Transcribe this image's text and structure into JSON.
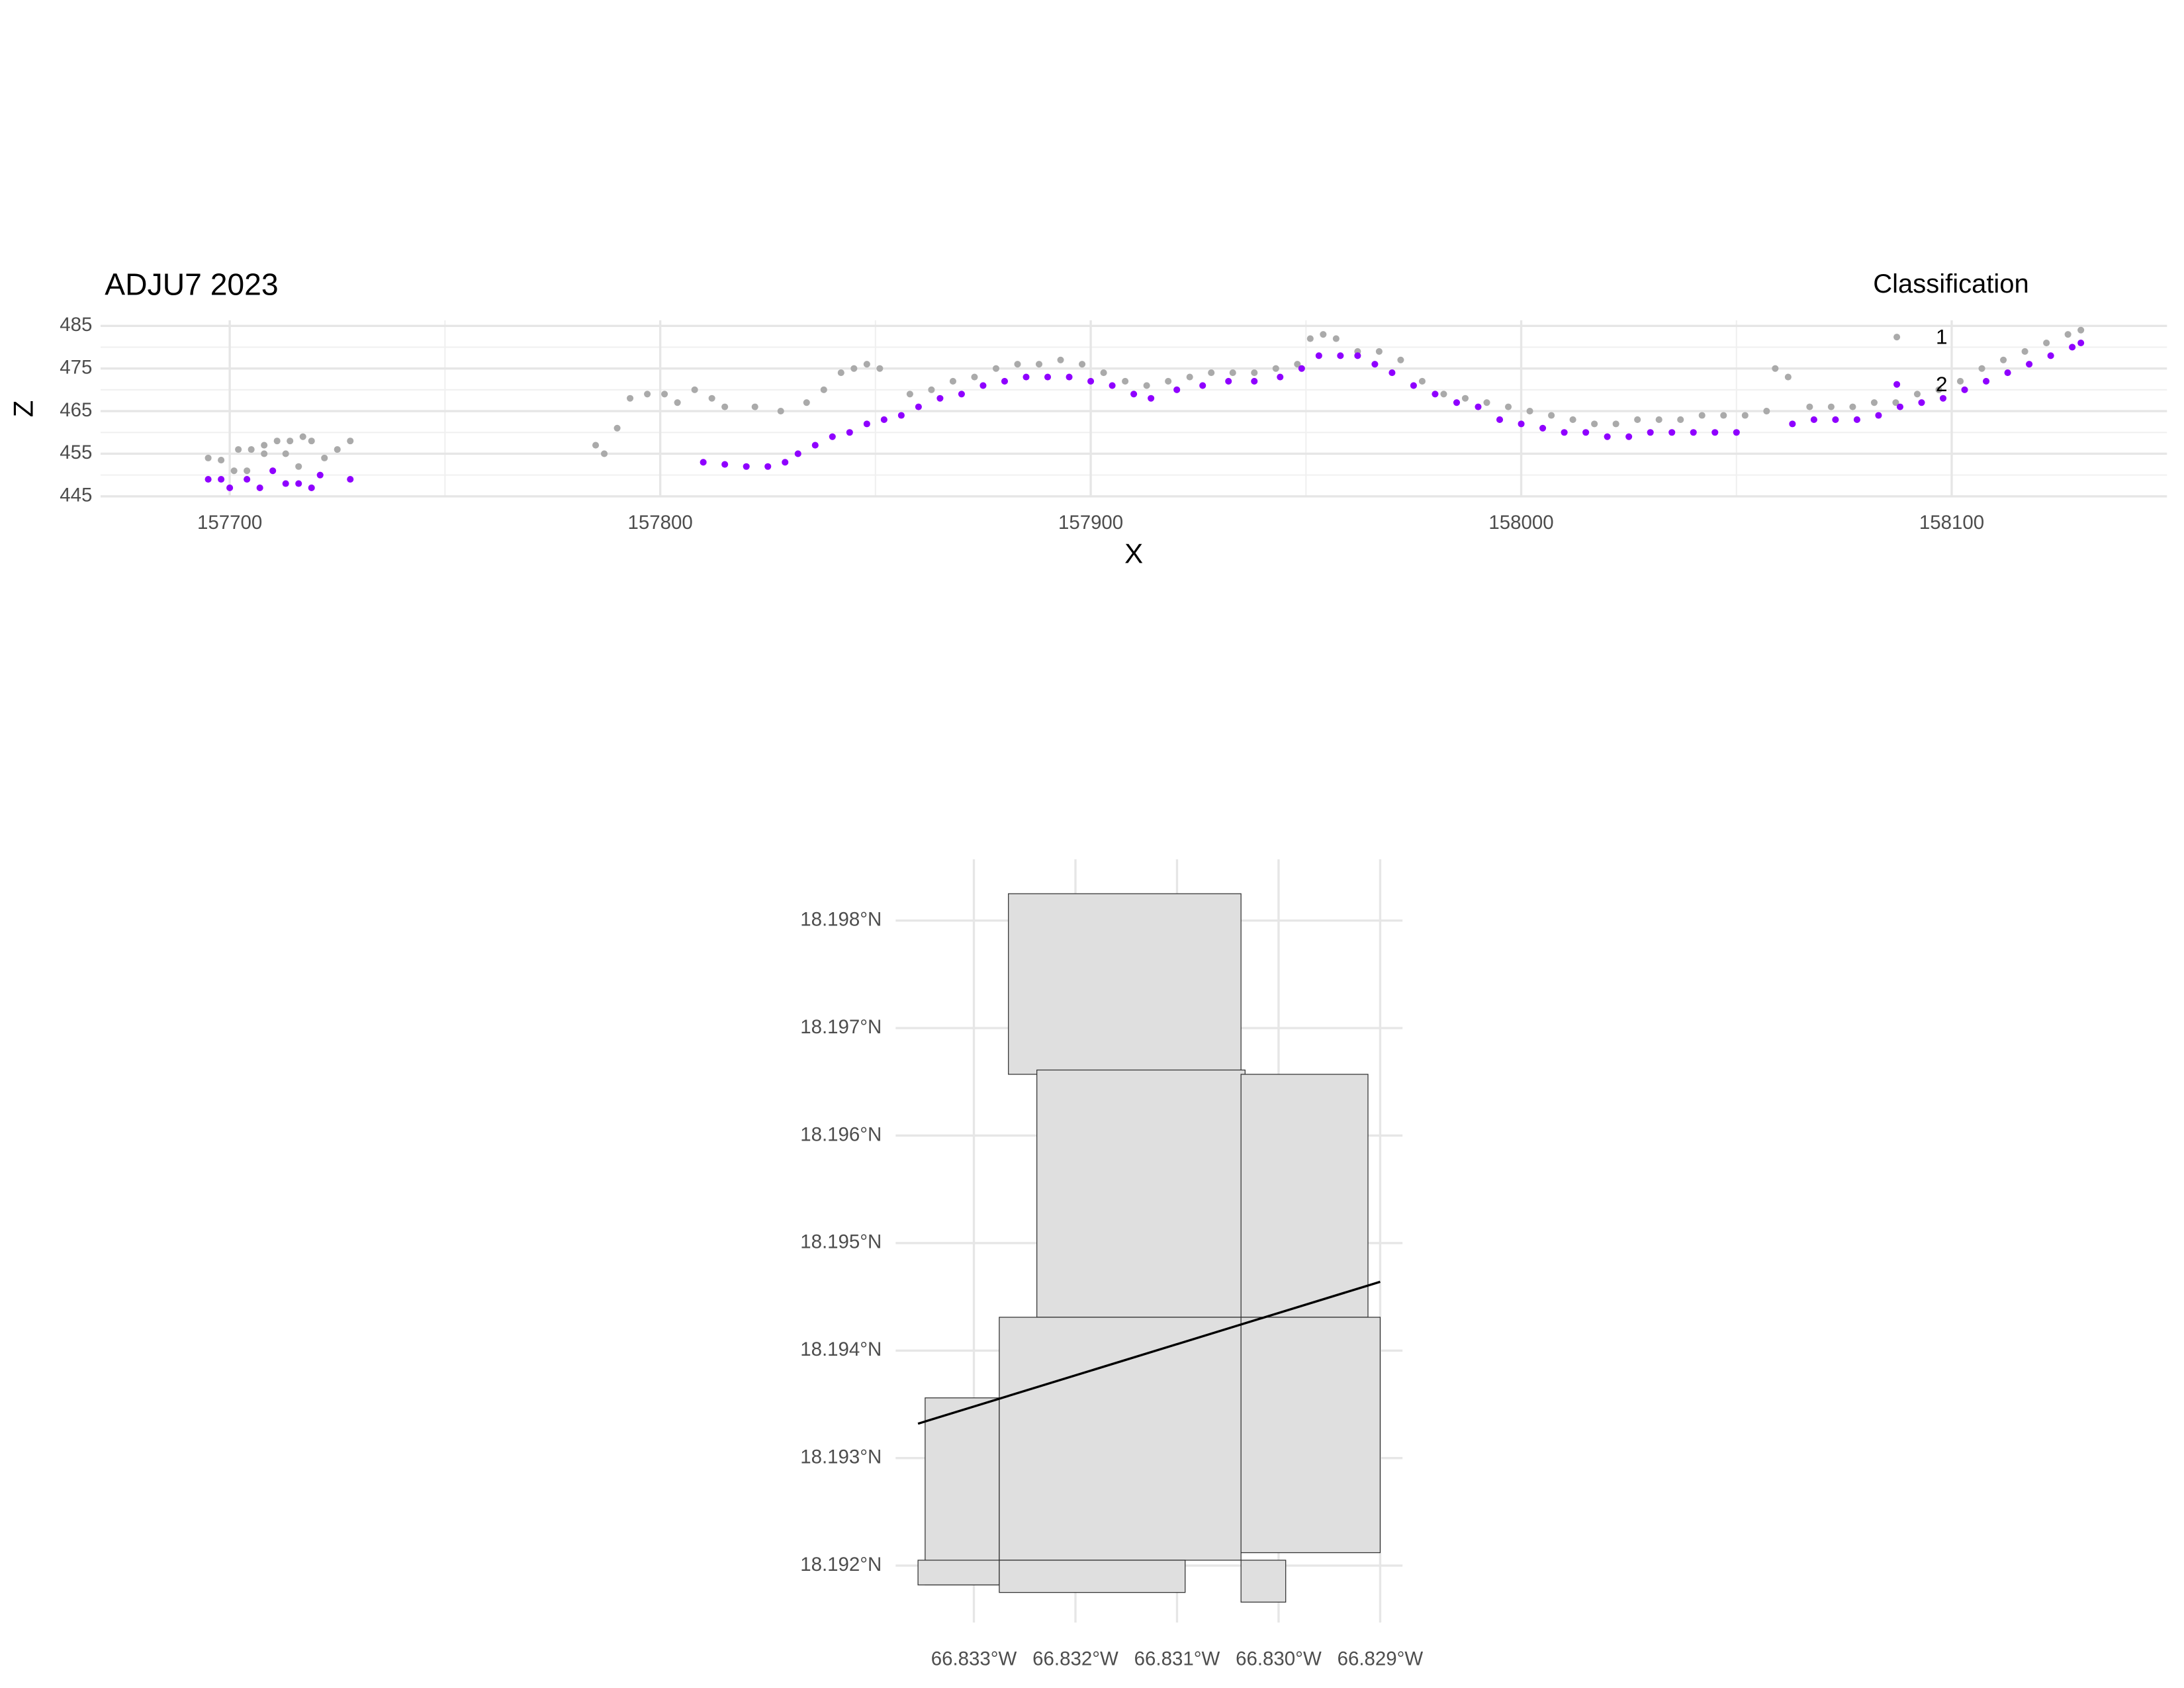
{
  "chart_data": [
    {
      "type": "scatter",
      "title": "ADJU7 2023",
      "x_label": "X",
      "y_label": "Z",
      "legend_title": "Classification",
      "legend": "top-right",
      "grid": true,
      "xlim": [
        157670,
        158150
      ],
      "ylim": [
        444.8,
        486.3
      ],
      "xticks": [
        157700,
        157800,
        157900,
        158000,
        158100
      ],
      "yticks": [
        445,
        455,
        465,
        475,
        485
      ],
      "series": [
        {
          "name": "1",
          "color": "#aaaaaa",
          "x": [
            157695,
            157698,
            157702,
            157705,
            157708,
            157711,
            157714,
            157717,
            157719,
            157713,
            157708,
            157716,
            157722,
            157725,
            157728,
            157701,
            157704,
            157785,
            157787,
            157790,
            157793,
            157797,
            157801,
            157804,
            157808,
            157812,
            157815,
            157822,
            157828,
            157834,
            157838,
            157842,
            157845,
            157848,
            157851,
            157858,
            157863,
            157868,
            157873,
            157878,
            157883,
            157888,
            157893,
            157898,
            157903,
            157908,
            157913,
            157918,
            157923,
            157928,
            157933,
            157938,
            157943,
            157948,
            157951,
            157954,
            157957,
            157962,
            157967,
            157972,
            157977,
            157982,
            157987,
            157992,
            157997,
            158002,
            158007,
            158012,
            158017,
            158022,
            158027,
            158032,
            158037,
            158042,
            158047,
            158052,
            158057,
            158059,
            158062,
            158067,
            158072,
            158077,
            158082,
            158087,
            158092,
            158097,
            158102,
            158107,
            158112,
            158117,
            158122,
            158127,
            158130
          ],
          "y": [
            454,
            453.5,
            456,
            456,
            457,
            458,
            458,
            459,
            458,
            455,
            455,
            452,
            454,
            456,
            458,
            451,
            451,
            457,
            455,
            461,
            468,
            469,
            469,
            467,
            470,
            468,
            466,
            466,
            465,
            467,
            470,
            474,
            475,
            476,
            475,
            469,
            470,
            472,
            473,
            475,
            476,
            476,
            477,
            476,
            474,
            472,
            471,
            472,
            473,
            474,
            474,
            474,
            475,
            476,
            482,
            483,
            482,
            479,
            479,
            477,
            472,
            469,
            468,
            467,
            466,
            465,
            464,
            463,
            462,
            462,
            463,
            463,
            463,
            464,
            464,
            464,
            465,
            475,
            473,
            466,
            466,
            466,
            467,
            467,
            469,
            470,
            472,
            475,
            477,
            479,
            481,
            483,
            484
          ]
        },
        {
          "name": "2",
          "color": "#8f00ff",
          "x": [
            157695,
            157698,
            157700,
            157704,
            157707,
            157710,
            157713,
            157716,
            157719,
            157721,
            157728,
            157810,
            157815,
            157820,
            157825,
            157829,
            157832,
            157836,
            157840,
            157844,
            157848,
            157852,
            157856,
            157860,
            157865,
            157870,
            157875,
            157880,
            157885,
            157890,
            157895,
            157900,
            157905,
            157910,
            157914,
            157920,
            157926,
            157932,
            157938,
            157944,
            157949,
            157953,
            157958,
            157962,
            157966,
            157970,
            157975,
            157980,
            157985,
            157990,
            157995,
            158000,
            158005,
            158010,
            158015,
            158020,
            158025,
            158030,
            158035,
            158040,
            158045,
            158050,
            158063,
            158068,
            158073,
            158078,
            158083,
            158088,
            158093,
            158098,
            158103,
            158108,
            158113,
            158118,
            158123,
            158128,
            158130
          ],
          "y": [
            449,
            449,
            447,
            449,
            447,
            451,
            448,
            448,
            447,
            450,
            449,
            453,
            452.5,
            452,
            452,
            453,
            455,
            457,
            459,
            460,
            462,
            463,
            464,
            466,
            468,
            469,
            471,
            472,
            473,
            473,
            473,
            472,
            471,
            469,
            468,
            470,
            471,
            472,
            472,
            473,
            475,
            478,
            478,
            478,
            476,
            474,
            471,
            469,
            467,
            466,
            463,
            462,
            461,
            460,
            460,
            459,
            459,
            460,
            460,
            460,
            460,
            460,
            462,
            463,
            463,
            463,
            464,
            466,
            467,
            468,
            470,
            472,
            474,
            476,
            478,
            480,
            481
          ]
        }
      ]
    },
    {
      "type": "map",
      "grid": true,
      "xlim": [
        -66.83377,
        -66.82878
      ],
      "ylim": [
        18.19147,
        18.19857
      ],
      "xticks": [
        {
          "value": -66.833,
          "label": "66.833°W"
        },
        {
          "value": -66.832,
          "label": "66.832°W"
        },
        {
          "value": -66.831,
          "label": "66.831°W"
        },
        {
          "value": -66.83,
          "label": "66.830°W"
        },
        {
          "value": -66.829,
          "label": "66.829°W"
        }
      ],
      "yticks": [
        {
          "value": 18.192,
          "label": "18.192°N"
        },
        {
          "value": 18.193,
          "label": "18.193°N"
        },
        {
          "value": 18.194,
          "label": "18.194°N"
        },
        {
          "value": 18.195,
          "label": "18.195°N"
        },
        {
          "value": 18.196,
          "label": "18.196°N"
        },
        {
          "value": 18.197,
          "label": "18.197°N"
        },
        {
          "value": 18.198,
          "label": "18.198°N"
        }
      ],
      "tile_color": "#dfdfdf",
      "tiles": [
        {
          "lon": [
            -66.83266,
            -66.83037
          ],
          "lat": [
            18.19657,
            18.19825
          ]
        },
        {
          "lon": [
            -66.83238,
            -66.83033
          ],
          "lat": [
            18.19431,
            18.19661
          ]
        },
        {
          "lon": [
            -66.83037,
            -66.82912
          ],
          "lat": [
            18.19431,
            18.19657
          ]
        },
        {
          "lon": [
            -66.83348,
            -66.83275
          ],
          "lat": [
            18.19182,
            18.19356
          ]
        },
        {
          "lon": [
            -66.83275,
            -66.83037
          ],
          "lat": [
            18.19205,
            18.19431
          ]
        },
        {
          "lon": [
            -66.83037,
            -66.829
          ],
          "lat": [
            18.19212,
            18.19431
          ]
        },
        {
          "lon": [
            -66.83355,
            -66.83275
          ],
          "lat": [
            18.19182,
            18.19205
          ]
        },
        {
          "lon": [
            -66.83275,
            -66.83092
          ],
          "lat": [
            18.19175,
            18.19205
          ]
        },
        {
          "lon": [
            -66.83037,
            -66.82993
          ],
          "lat": [
            18.19166,
            18.19205
          ]
        }
      ],
      "track": {
        "lon": [
          -66.83355,
          -66.829
        ],
        "lat": [
          18.19332,
          18.19464
        ]
      }
    }
  ]
}
